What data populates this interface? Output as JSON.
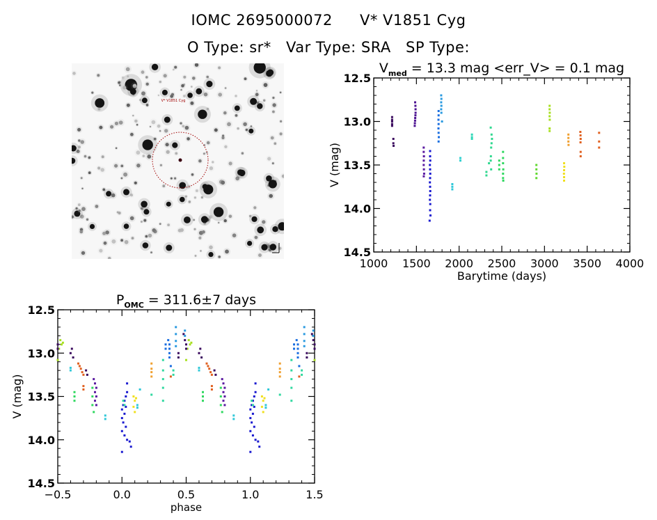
{
  "header": {
    "id_label": "IOMC 2695000072",
    "star_name": "V* V1851 Cyg",
    "otype": "O Type: sr*",
    "vartype": "Var Type: SRA",
    "sptype": "SP Type:"
  },
  "sky_chart": {
    "description": "finding chart (inverted greyscale DSS field) with red dashed circle around target",
    "target_label": "V* V1851 Cyg",
    "circle_color": "#a00000"
  },
  "chart_data": [
    {
      "type": "scatter",
      "id": "light_curve",
      "title_main": "V",
      "title_sub": "med",
      "title_rest": " = 13.3 mag <err_V> = 0.1 mag",
      "xlabel": "Barytime (days)",
      "ylabel": "V (mag)",
      "xlim": [
        1000,
        4000
      ],
      "ylim": [
        14.5,
        12.5
      ],
      "y_inverted": true,
      "xticks": [
        "1000",
        "1500",
        "2000",
        "2500",
        "3000",
        "3500",
        "4000"
      ],
      "yticks": [
        "12.5",
        "13.0",
        "13.5",
        "14.0",
        "14.5"
      ],
      "grid": false,
      "series": [
        {
          "name": "epoch1",
          "color": "#3a0a5e",
          "points": [
            [
              1215,
              12.95
            ],
            [
              1215,
              12.98
            ],
            [
              1215,
              13.0
            ],
            [
              1215,
              13.03
            ],
            [
              1215,
              13.05
            ],
            [
              1230,
              13.2
            ],
            [
              1230,
              13.25
            ],
            [
              1232,
              13.28
            ]
          ]
        },
        {
          "name": "epoch2",
          "color": "#4b1090",
          "points": [
            [
              1485,
              12.78
            ],
            [
              1488,
              12.82
            ],
            [
              1490,
              12.86
            ],
            [
              1490,
              12.9
            ],
            [
              1488,
              12.93
            ],
            [
              1486,
              12.96
            ],
            [
              1484,
              12.99
            ],
            [
              1482,
              13.02
            ],
            [
              1480,
              13.05
            ]
          ]
        },
        {
          "name": "epoch3",
          "color": "#5a1aa0",
          "points": [
            [
              1585,
              13.3
            ],
            [
              1585,
              13.35
            ],
            [
              1588,
              13.4
            ],
            [
              1586,
              13.45
            ],
            [
              1585,
              13.5
            ],
            [
              1588,
              13.55
            ],
            [
              1590,
              13.6
            ],
            [
              1586,
              13.63
            ]
          ]
        },
        {
          "name": "epoch4",
          "color": "#1a1ad0",
          "points": [
            [
              1660,
              13.34
            ],
            [
              1660,
              13.4
            ],
            [
              1662,
              13.45
            ],
            [
              1658,
              13.5
            ],
            [
              1660,
              13.55
            ],
            [
              1662,
              13.6
            ],
            [
              1660,
              13.65
            ],
            [
              1658,
              13.7
            ],
            [
              1660,
              13.75
            ],
            [
              1662,
              13.8
            ],
            [
              1660,
              13.85
            ],
            [
              1658,
              13.9
            ],
            [
              1662,
              13.95
            ],
            [
              1660,
              14.02
            ],
            [
              1664,
              14.08
            ],
            [
              1655,
              14.14
            ]
          ]
        },
        {
          "name": "epoch5",
          "color": "#1a6ee0",
          "points": [
            [
              1760,
              12.88
            ],
            [
              1760,
              12.93
            ],
            [
              1758,
              12.98
            ],
            [
              1760,
              13.03
            ],
            [
              1758,
              13.08
            ],
            [
              1760,
              13.13
            ],
            [
              1762,
              13.18
            ],
            [
              1760,
              13.23
            ]
          ]
        },
        {
          "name": "epoch6",
          "color": "#2a9ae0",
          "points": [
            [
              1790,
              12.7
            ],
            [
              1792,
              12.74
            ],
            [
              1790,
              12.78
            ],
            [
              1792,
              12.82
            ],
            [
              1790,
              12.86
            ],
            [
              1792,
              12.9
            ],
            [
              1800,
              13.0
            ]
          ]
        },
        {
          "name": "epoch7",
          "color": "#30c8d8",
          "points": [
            [
              1920,
              13.72
            ],
            [
              1920,
              13.75
            ],
            [
              1920,
              13.78
            ]
          ]
        },
        {
          "name": "epoch8",
          "color": "#30d0d0",
          "points": [
            [
              2015,
              13.42
            ],
            [
              2015,
              13.45
            ]
          ]
        },
        {
          "name": "epoch9",
          "color": "#30d8b8",
          "points": [
            [
              2150,
              13.15
            ],
            [
              2150,
              13.18
            ],
            [
              2150,
              13.2
            ]
          ]
        },
        {
          "name": "epoch10",
          "color": "#30d890",
          "points": [
            [
              2320,
              13.58
            ],
            [
              2320,
              13.62
            ],
            [
              2350,
              13.48
            ],
            [
              2370,
              13.07
            ],
            [
              2380,
              13.15
            ],
            [
              2385,
              13.2
            ],
            [
              2380,
              13.25
            ],
            [
              2375,
              13.3
            ],
            [
              2372,
              13.4
            ],
            [
              2370,
              13.45
            ],
            [
              2375,
              13.55
            ]
          ]
        },
        {
          "name": "epoch11",
          "color": "#30d860",
          "points": [
            [
              2470,
              13.45
            ],
            [
              2470,
              13.5
            ],
            [
              2470,
              13.55
            ],
            [
              2515,
              13.35
            ],
            [
              2515,
              13.42
            ],
            [
              2515,
              13.48
            ],
            [
              2517,
              13.55
            ],
            [
              2515,
              13.6
            ],
            [
              2515,
              13.65
            ],
            [
              2517,
              13.68
            ]
          ]
        },
        {
          "name": "epoch12",
          "color": "#60d830",
          "points": [
            [
              2905,
              13.5
            ],
            [
              2905,
              13.55
            ],
            [
              2907,
              13.6
            ],
            [
              2905,
              13.65
            ]
          ]
        },
        {
          "name": "epoch13",
          "color": "#a8e020",
          "points": [
            [
              3060,
              12.82
            ],
            [
              3060,
              12.86
            ],
            [
              3062,
              12.9
            ],
            [
              3060,
              12.94
            ],
            [
              3062,
              12.98
            ],
            [
              3060,
              13.08
            ],
            [
              3060,
              13.11
            ]
          ]
        },
        {
          "name": "epoch14",
          "color": "#f0e020",
          "points": [
            [
              3230,
              13.48
            ],
            [
              3232,
              13.52
            ],
            [
              3230,
              13.56
            ],
            [
              3228,
              13.6
            ],
            [
              3230,
              13.64
            ],
            [
              3230,
              13.68
            ]
          ]
        },
        {
          "name": "epoch15",
          "color": "#f0a030",
          "points": [
            [
              3280,
              13.15
            ],
            [
              3280,
              13.19
            ],
            [
              3280,
              13.23
            ],
            [
              3282,
              13.27
            ]
          ]
        },
        {
          "name": "epoch16",
          "color": "#e06020",
          "points": [
            [
              3420,
              13.12
            ],
            [
              3422,
              13.16
            ],
            [
              3424,
              13.2
            ],
            [
              3422,
              13.24
            ],
            [
              3424,
              13.35
            ],
            [
              3424,
              13.4
            ],
            [
              3640,
              13.13
            ],
            [
              3640,
              13.23
            ],
            [
              3640,
              13.3
            ]
          ]
        }
      ]
    },
    {
      "type": "scatter",
      "id": "phase_curve",
      "title_main": "P",
      "title_sub": "OMC",
      "title_rest": " = 311.6±7 days",
      "period_days": 311.6,
      "period_err_days": 7,
      "xlabel": "phase",
      "ylabel": "V (mag)",
      "xlim": [
        -0.5,
        1.5
      ],
      "ylim": [
        14.5,
        12.5
      ],
      "y_inverted": true,
      "xticks": [
        "−0.5",
        "0.0",
        "0.5",
        "1.0",
        "1.5"
      ],
      "yticks": [
        "12.5",
        "13.0",
        "13.5",
        "14.0",
        "14.5"
      ],
      "grid": false,
      "note": "data duplicated at phase+1 for phases 0-0.5 and phase-1 for 0.5-1.0",
      "series": [
        {
          "name": "p-yellowgreen",
          "color": "#a8e020",
          "points": [
            [
              0.52,
              12.85
            ],
            [
              0.53,
              12.9
            ],
            [
              0.54,
              12.88
            ],
            [
              0.51,
              12.95
            ],
            [
              0.5,
              13.08
            ]
          ]
        },
        {
          "name": "p-purple-dark",
          "color": "#3a0a5e",
          "points": [
            [
              0.6,
              13.0
            ],
            [
              0.61,
              12.95
            ],
            [
              0.62,
              13.05
            ],
            [
              0.72,
              13.2
            ],
            [
              0.73,
              13.25
            ],
            [
              0.48,
              12.78
            ],
            [
              0.49,
              12.85
            ],
            [
              0.5,
              12.9
            ],
            [
              0.5,
              12.95
            ],
            [
              0.44,
              13.0
            ],
            [
              0.44,
              13.05
            ]
          ]
        },
        {
          "name": "p-orange-red",
          "color": "#e06020",
          "points": [
            [
              0.66,
              13.12
            ],
            [
              0.67,
              13.15
            ],
            [
              0.68,
              13.18
            ],
            [
              0.69,
              13.22
            ],
            [
              0.7,
              13.25
            ],
            [
              0.7,
              13.38
            ],
            [
              0.7,
              13.42
            ],
            [
              0.38,
              13.27
            ]
          ]
        },
        {
          "name": "p-cyan",
          "color": "#30c8d8",
          "points": [
            [
              0.6,
              13.17
            ],
            [
              0.6,
              13.2
            ],
            [
              0.87,
              13.72
            ],
            [
              0.87,
              13.76
            ],
            [
              0.14,
              13.42
            ],
            [
              0.12,
              13.6
            ],
            [
              0.12,
              13.63
            ]
          ]
        },
        {
          "name": "p-green",
          "color": "#30d860",
          "points": [
            [
              0.63,
              13.45
            ],
            [
              0.63,
              13.5
            ],
            [
              0.63,
              13.55
            ],
            [
              0.77,
              13.4
            ],
            [
              0.77,
              13.5
            ],
            [
              0.77,
              13.6
            ],
            [
              0.78,
              13.68
            ]
          ]
        },
        {
          "name": "p-purple",
          "color": "#5a1aa0",
          "points": [
            [
              0.78,
              13.3
            ],
            [
              0.79,
              13.35
            ],
            [
              0.8,
              13.4
            ],
            [
              0.79,
              13.45
            ],
            [
              0.8,
              13.5
            ],
            [
              0.79,
              13.55
            ],
            [
              0.8,
              13.6
            ]
          ]
        },
        {
          "name": "p-blue",
          "color": "#1a1ad0",
          "points": [
            [
              0.0,
              13.65
            ],
            [
              0.01,
              13.6
            ],
            [
              0.02,
              13.55
            ],
            [
              0.03,
              13.5
            ],
            [
              0.04,
              13.45
            ],
            [
              0.02,
              13.7
            ],
            [
              0.0,
              13.75
            ],
            [
              0.01,
              13.8
            ],
            [
              0.03,
              13.85
            ],
            [
              0.0,
              13.9
            ],
            [
              0.02,
              13.95
            ],
            [
              0.04,
              14.0
            ],
            [
              0.06,
              14.02
            ],
            [
              0.07,
              14.08
            ],
            [
              0.0,
              14.14
            ],
            [
              0.04,
              13.35
            ],
            [
              0.03,
              13.62
            ]
          ]
        },
        {
          "name": "p-teal",
          "color": "#30d8a0",
          "points": [
            [
              0.01,
              13.55
            ],
            [
              0.02,
              13.6
            ],
            [
              0.32,
              13.08
            ],
            [
              0.32,
              13.2
            ],
            [
              0.32,
              13.3
            ],
            [
              0.32,
              13.4
            ],
            [
              0.32,
              13.55
            ],
            [
              0.23,
              13.48
            ],
            [
              0.4,
              13.2
            ],
            [
              0.4,
              13.25
            ]
          ]
        },
        {
          "name": "p-yellow",
          "color": "#f0e020",
          "points": [
            [
              0.09,
              13.5
            ],
            [
              0.1,
              13.55
            ],
            [
              0.11,
              13.52
            ],
            [
              0.09,
              13.62
            ],
            [
              0.1,
              13.68
            ]
          ]
        },
        {
          "name": "p-orange",
          "color": "#f0a030",
          "points": [
            [
              0.23,
              13.12
            ],
            [
              0.23,
              13.18
            ],
            [
              0.23,
              13.22
            ],
            [
              0.23,
              13.27
            ]
          ]
        },
        {
          "name": "p-azure",
          "color": "#1a6ee0",
          "points": [
            [
              0.34,
              12.9
            ],
            [
              0.34,
              12.95
            ],
            [
              0.36,
              12.85
            ],
            [
              0.37,
              12.9
            ],
            [
              0.37,
              12.95
            ],
            [
              0.37,
              13.0
            ],
            [
              0.37,
              13.05
            ],
            [
              0.38,
              13.15
            ]
          ]
        },
        {
          "name": "p-skyblue",
          "color": "#2a9ae0",
          "points": [
            [
              0.42,
              12.7
            ],
            [
              0.42,
              12.78
            ],
            [
              0.42,
              12.86
            ],
            [
              0.42,
              12.92
            ],
            [
              0.49,
              12.74
            ],
            [
              0.49,
              12.8
            ]
          ]
        }
      ]
    }
  ]
}
